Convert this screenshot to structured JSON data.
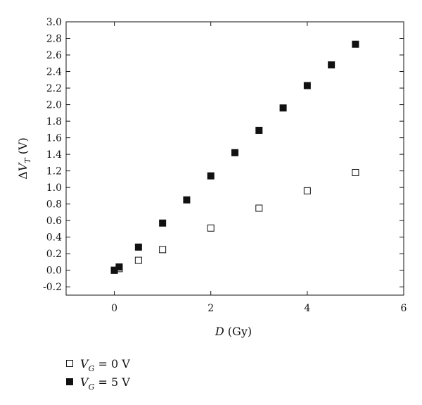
{
  "chart_data": {
    "type": "scatter",
    "title": "",
    "xlabel": "D (Gy)",
    "ylabel": "ΔV_T (V)",
    "xlim": [
      -1,
      6
    ],
    "ylim": [
      -0.3,
      3.0
    ],
    "xticks": [
      0,
      2,
      4,
      6
    ],
    "yticks": [
      -0.2,
      0.0,
      0.2,
      0.4,
      0.6,
      0.8,
      1.0,
      1.2,
      1.4,
      1.6,
      1.8,
      2.0,
      2.2,
      2.4,
      2.6,
      2.8,
      3.0
    ],
    "xtick_labels": [
      "0",
      "2",
      "4",
      "6"
    ],
    "ytick_labels": [
      "-0.2",
      "0.0",
      "0.2",
      "0.4",
      "0.6",
      "0.8",
      "1.0",
      "1.2",
      "1.4",
      "1.6",
      "1.8",
      "2.0",
      "2.2",
      "2.4",
      "2.6",
      "2.8",
      "3.0"
    ],
    "grid": false,
    "legend_placement": "bottom-left, below plot",
    "series": [
      {
        "name": "V_G = 0 V",
        "marker": "open-square",
        "color": "#111111",
        "x": [
          0,
          0.1,
          0.5,
          1,
          2,
          3,
          4,
          5
        ],
        "y": [
          0.0,
          0.02,
          0.12,
          0.25,
          0.51,
          0.75,
          0.96,
          1.18
        ]
      },
      {
        "name": "V_G = 5 V",
        "marker": "filled-square",
        "color": "#111111",
        "x": [
          0,
          0.1,
          0.5,
          1,
          1.5,
          2,
          2.5,
          3,
          3.5,
          4,
          4.5,
          5
        ],
        "y": [
          0.0,
          0.04,
          0.28,
          0.57,
          0.85,
          1.14,
          1.42,
          1.69,
          1.96,
          2.23,
          2.48,
          2.73
        ]
      }
    ]
  }
}
